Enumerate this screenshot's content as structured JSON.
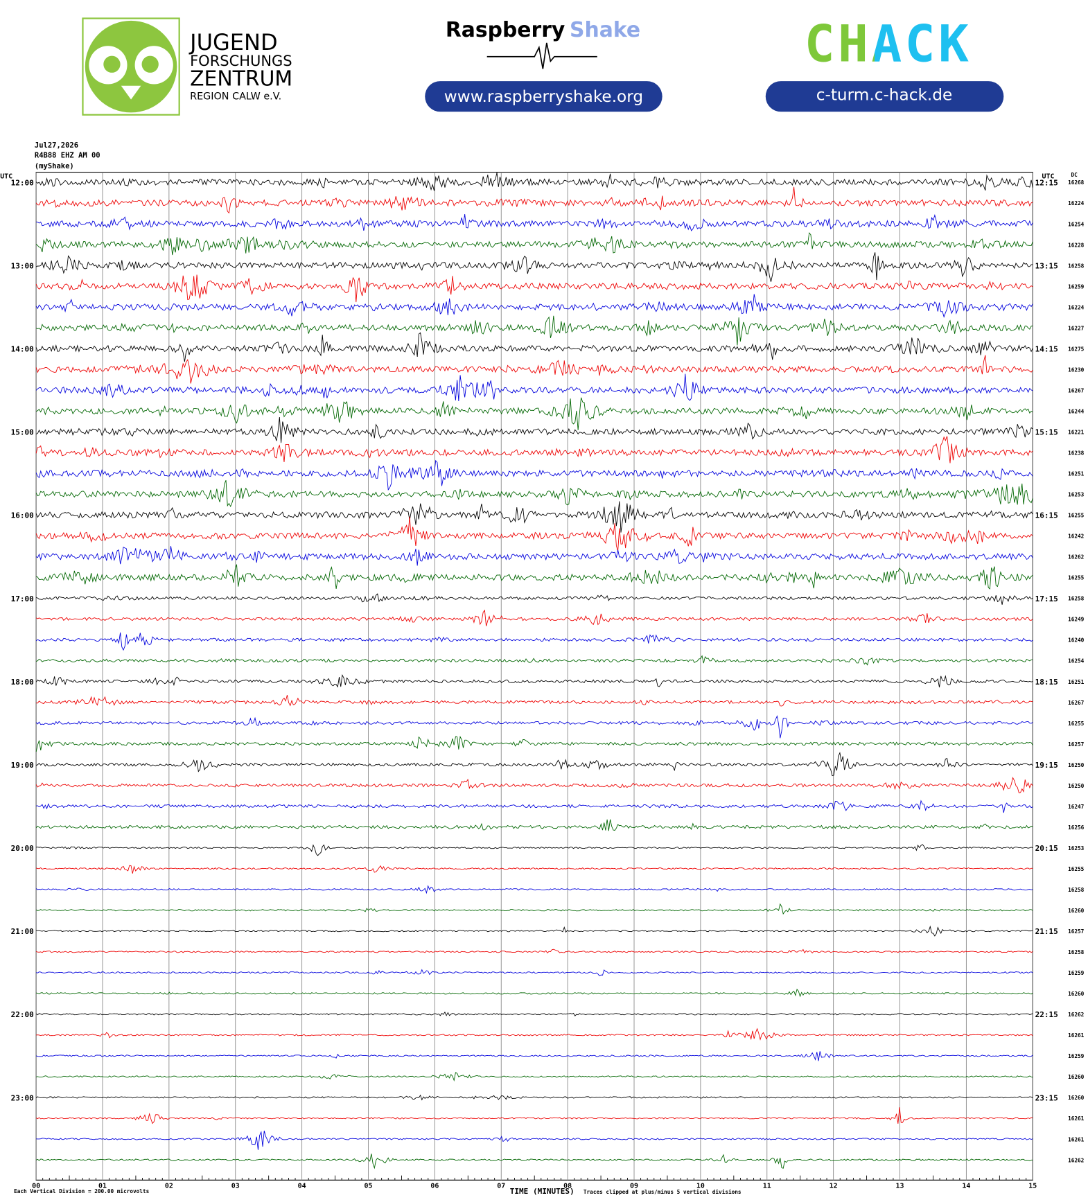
{
  "header": {
    "jfz": [
      "JUGEND",
      "FORSCHUNGS",
      "ZENTRUM",
      "REGION CALW e.V."
    ],
    "rs_name": "Raspberry",
    "rs_accent": "Shake",
    "rs_url": "www.raspberryshake.org",
    "chack": "CHACK",
    "chack_url": "c-turm.c-hack.de"
  },
  "plot": {
    "info": [
      "Jul27,2026",
      "R4B88 EHZ AM 00",
      "(myShake)"
    ],
    "utc_left": "UTC",
    "utc_right": "UTC",
    "dc": "DC",
    "left_times": [
      "12:00",
      "13:00",
      "14:00",
      "15:00",
      "16:00",
      "17:00",
      "18:00",
      "19:00",
      "20:00",
      "21:00",
      "22:00",
      "23:00"
    ],
    "right_times": [
      "12:15",
      "13:15",
      "14:15",
      "15:15",
      "16:15",
      "17:15",
      "18:15",
      "19:15",
      "20:15",
      "21:15",
      "22:15",
      "23:15"
    ],
    "dc_values": [
      16268,
      16224,
      16254,
      16228,
      16258,
      16259,
      16224,
      16227,
      16275,
      16230,
      16267,
      16244,
      16221,
      16238,
      16251,
      16253,
      16255,
      16242,
      16262,
      16255,
      16258,
      16249,
      16240,
      16254,
      16251,
      16267,
      16255,
      16257,
      16250,
      16250,
      16247,
      16256,
      16253,
      16255,
      16258,
      16260,
      16257,
      16258,
      16259,
      16260,
      16262,
      16261,
      16259,
      16260,
      16260,
      16261,
      16261,
      16262
    ],
    "xticks": [
      "00",
      "01",
      "02",
      "03",
      "04",
      "05",
      "06",
      "07",
      "08",
      "09",
      "10",
      "11",
      "12",
      "13",
      "14",
      "15"
    ],
    "xlabel": "TIME (MINUTES)",
    "scale_note": "Each Vertical Division =  200.00 microvolts",
    "clip_note": "Traces clipped at plus/minus 5 vertical divisions"
  }
}
